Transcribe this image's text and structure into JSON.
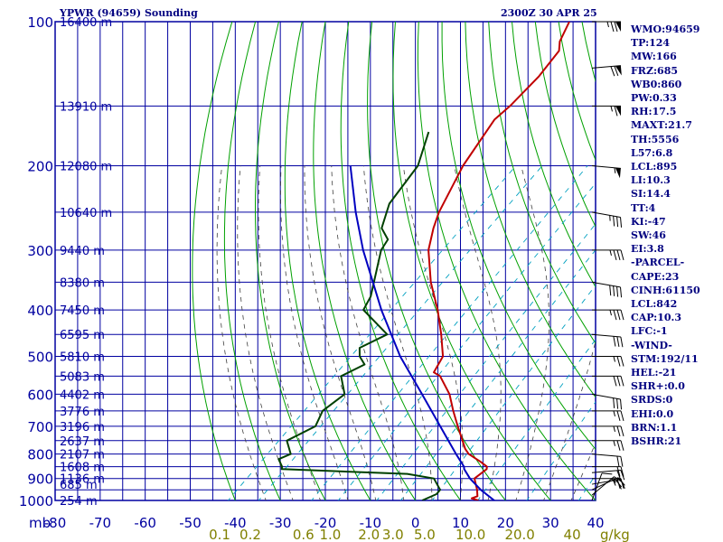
{
  "header": {
    "station": "YPWR (94659) Sounding",
    "datetime": "2300Z 30 APR 25"
  },
  "indices": [
    "WMO:94659",
    "TP:124",
    "MW:166",
    "FRZ:685",
    "WB0:860",
    "PW:0.33",
    "RH:17.5",
    "MAXT:21.7",
    "TH:5556",
    "L57:6.8",
    "LCL:895",
    "LI:10.3",
    "SI:14.4",
    "TT:4",
    "KI:-47",
    "SW:46",
    "EI:3.8",
    "-PARCEL-",
    "CAPE:23",
    "CINH:61150",
    "LCL:842",
    "CAP:10.3",
    "LFC:-1",
    "-WIND-",
    "STM:192/11",
    "HEL:-21",
    "SHR+:0.0",
    "SRDS:0",
    "EHI:0.0",
    "BRN:1.1",
    "BSHR:21"
  ],
  "colors": {
    "grid": "#0000a0",
    "dry_adiabat": "#00a000",
    "moist_adiabat": "#404040",
    "mixing_ratio": "#00a0c0",
    "temperature": "#c00000",
    "dewpoint": "#004000",
    "parcel": "#0000c0",
    "pressure_label": "#0000a0",
    "mixing_label": "#808000",
    "wind_barb": "#000000"
  },
  "chart_data": {
    "type": "line",
    "diagram": "skew-T log-P",
    "y_scale": "log",
    "ylim": [
      1000,
      100
    ],
    "xlim": [
      -80,
      40
    ],
    "grid": true,
    "pressure_axis_label": "mb",
    "pressure_ticks": [
      100,
      200,
      300,
      400,
      500,
      600,
      700,
      800,
      900,
      1000
    ],
    "pressure_tick_labels": [
      "100",
      "200",
      "300",
      "400",
      "500",
      "600",
      "700",
      "800",
      "900",
      "1000"
    ],
    "temperature_ticks": [
      -80,
      -70,
      -60,
      -50,
      -40,
      -30,
      -20,
      -10,
      0,
      10,
      20,
      30,
      40
    ],
    "temperature_tick_labels": [
      "-80",
      "-70",
      "-60",
      "-50",
      "-40",
      "-30",
      "-20",
      "-10",
      "0",
      "10",
      "20",
      "30",
      "40"
    ],
    "mixing_ratio_unit": "g/kg",
    "mixing_ratio_labels": [
      "0.1",
      "0.2",
      "0.6",
      "1.0",
      "2.0",
      "3.0",
      "5.0",
      "10.0",
      "20.0",
      "40"
    ],
    "mixing_ratio_values": [
      0.1,
      0.2,
      0.6,
      1.0,
      2.0,
      3.0,
      5.0,
      10.0,
      20.0,
      40.0
    ],
    "height_labels": [
      {
        "p": 1000,
        "label": "254 m"
      },
      {
        "p": 925,
        "label": "685 m"
      },
      {
        "p": 900,
        "label": "1136 m"
      },
      {
        "p": 850,
        "label": "1608 m"
      },
      {
        "p": 800,
        "label": "2107 m"
      },
      {
        "p": 750,
        "label": "2637 m"
      },
      {
        "p": 700,
        "label": "3196 m"
      },
      {
        "p": 650,
        "label": "3776 m"
      },
      {
        "p": 600,
        "label": "4402 m"
      },
      {
        "p": 550,
        "label": "5083 m"
      },
      {
        "p": 500,
        "label": "5810 m"
      },
      {
        "p": 450,
        "label": "6595 m"
      },
      {
        "p": 400,
        "label": "7450 m"
      },
      {
        "p": 350,
        "label": "8380 m"
      },
      {
        "p": 300,
        "label": "9440 m"
      },
      {
        "p": 250,
        "label": "10640 m"
      },
      {
        "p": 200,
        "label": "12080 m"
      },
      {
        "p": 150,
        "label": "13910 m"
      },
      {
        "p": 100,
        "label": "16400 m"
      }
    ],
    "series": [
      {
        "name": "temperature",
        "points": [
          [
            1000,
            14.0
          ],
          [
            990,
            12.0
          ],
          [
            980,
            12.8
          ],
          [
            950,
            11.2
          ],
          [
            900,
            8.0
          ],
          [
            860,
            8.5
          ],
          [
            850,
            8.0
          ],
          [
            830,
            5.4
          ],
          [
            800,
            1.0
          ],
          [
            780,
            -1.0
          ],
          [
            750,
            -3.5
          ],
          [
            700,
            -7.9
          ],
          [
            650,
            -12.5
          ],
          [
            600,
            -17.2
          ],
          [
            550,
            -23.5
          ],
          [
            540,
            -25.8
          ],
          [
            500,
            -27.5
          ],
          [
            450,
            -33.0
          ],
          [
            400,
            -39.5
          ],
          [
            350,
            -47.5
          ],
          [
            300,
            -55.5
          ],
          [
            270,
            -59.5
          ],
          [
            250,
            -62.0
          ],
          [
            200,
            -67.5
          ],
          [
            160,
            -71.3
          ],
          [
            150,
            -71.0
          ],
          [
            130,
            -71.5
          ],
          [
            115,
            -73.0
          ],
          [
            110,
            -75.0
          ],
          [
            100,
            -77.5
          ]
        ]
      },
      {
        "name": "dewpoint",
        "points": [
          [
            1000,
            1.5
          ],
          [
            970,
            3.2
          ],
          [
            950,
            3.0
          ],
          [
            900,
            -1.0
          ],
          [
            880,
            -8.0
          ],
          [
            860,
            -37.0
          ],
          [
            850,
            -37.5
          ],
          [
            820,
            -40.0
          ],
          [
            800,
            -38.5
          ],
          [
            750,
            -42.5
          ],
          [
            700,
            -39.5
          ],
          [
            650,
            -41.5
          ],
          [
            600,
            -40.5
          ],
          [
            550,
            -45.5
          ],
          [
            520,
            -43.0
          ],
          [
            500,
            -46.0
          ],
          [
            480,
            -48.0
          ],
          [
            450,
            -45.0
          ],
          [
            400,
            -56.0
          ],
          [
            375,
            -57.5
          ],
          [
            300,
            -66.0
          ],
          [
            285,
            -67.0
          ],
          [
            270,
            -71.0
          ],
          [
            240,
            -75.0
          ],
          [
            200,
            -77.5
          ],
          [
            170,
            -83.0
          ]
        ]
      },
      {
        "name": "parcel",
        "points": [
          [
            1000,
            17.5
          ],
          [
            950,
            12.0
          ],
          [
            900,
            7.0
          ],
          [
            860,
            3.5
          ],
          [
            850,
            2.9
          ],
          [
            800,
            -1.8
          ],
          [
            700,
            -11.8
          ],
          [
            600,
            -23.3
          ],
          [
            500,
            -37.0
          ],
          [
            400,
            -52.0
          ],
          [
            300,
            -70.0
          ],
          [
            250,
            -80.5
          ],
          [
            200,
            -92.5
          ]
        ]
      }
    ],
    "wind_barbs": [
      {
        "p": 1000,
        "dir": 200,
        "spd": 10
      },
      {
        "p": 975,
        "dir": 230,
        "spd": 15
      },
      {
        "p": 950,
        "dir": 245,
        "spd": 20
      },
      {
        "p": 925,
        "dir": 260,
        "spd": 25
      },
      {
        "p": 900,
        "dir": 270,
        "spd": 25
      },
      {
        "p": 875,
        "dir": 265,
        "spd": 20
      },
      {
        "p": 850,
        "dir": 270,
        "spd": 20
      },
      {
        "p": 800,
        "dir": 275,
        "spd": 20
      },
      {
        "p": 750,
        "dir": 270,
        "spd": 25
      },
      {
        "p": 700,
        "dir": 270,
        "spd": 25
      },
      {
        "p": 650,
        "dir": 270,
        "spd": 25
      },
      {
        "p": 600,
        "dir": 280,
        "spd": 30
      },
      {
        "p": 550,
        "dir": 270,
        "spd": 30
      },
      {
        "p": 500,
        "dir": 270,
        "spd": 25
      },
      {
        "p": 450,
        "dir": 275,
        "spd": 30
      },
      {
        "p": 400,
        "dir": 270,
        "spd": 35
      },
      {
        "p": 350,
        "dir": 280,
        "spd": 40
      },
      {
        "p": 300,
        "dir": 270,
        "spd": 35
      },
      {
        "p": 250,
        "dir": 280,
        "spd": 35
      },
      {
        "p": 200,
        "dir": 275,
        "spd": 55
      },
      {
        "p": 150,
        "dir": 270,
        "spd": 65
      },
      {
        "p": 125,
        "dir": 265,
        "spd": 70
      },
      {
        "p": 100,
        "dir": 270,
        "spd": 75
      }
    ]
  }
}
